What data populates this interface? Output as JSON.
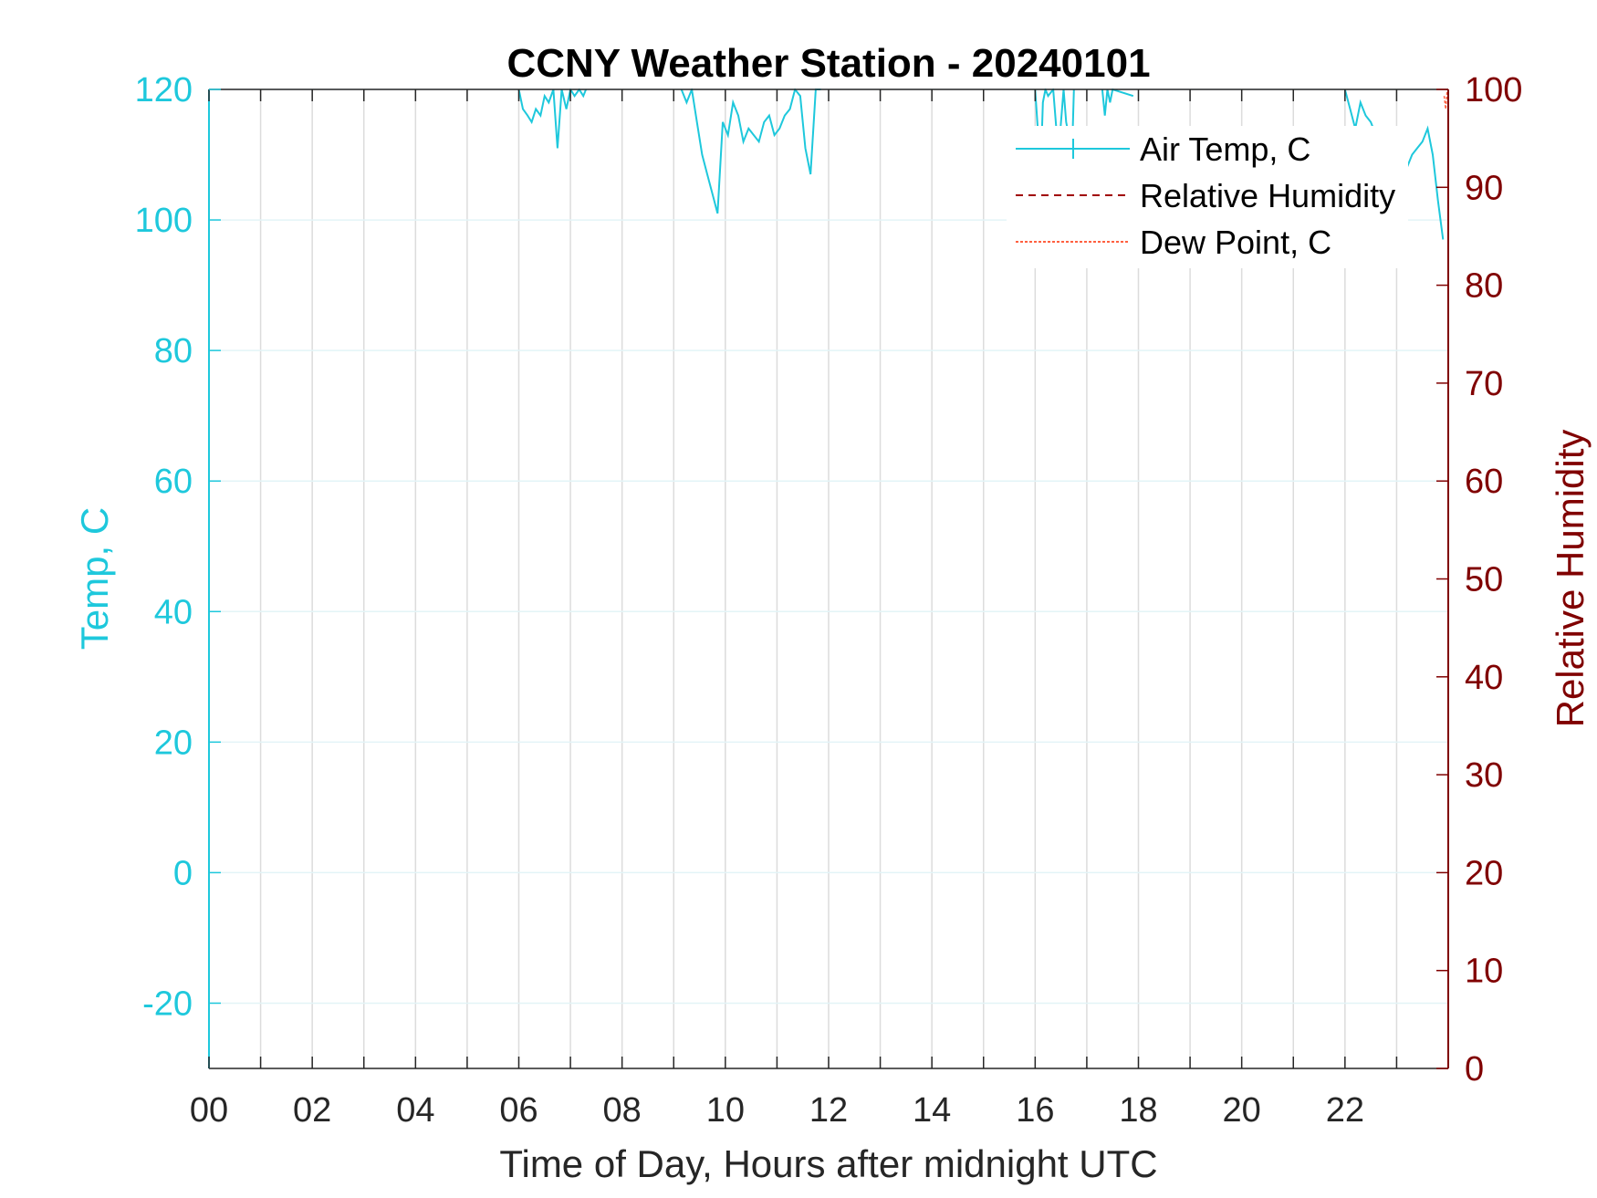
{
  "chart_data": {
    "type": "line",
    "title": "CCNY Weather Station - 20240101",
    "xlabel": "Time of Day, Hours after midnight UTC",
    "ylabel_left": "Temp, C",
    "ylabel_right": "Relative Humidity",
    "xlim": [
      0,
      24
    ],
    "ylim_left": [
      -30,
      120
    ],
    "ylim_right": [
      0,
      100
    ],
    "x_ticks": [
      0,
      2,
      4,
      6,
      8,
      10,
      12,
      14,
      16,
      18,
      20,
      22
    ],
    "x_tick_labels": [
      "00",
      "02",
      "04",
      "06",
      "08",
      "10",
      "12",
      "14",
      "16",
      "18",
      "20",
      "22"
    ],
    "y_left_ticks": [
      -20,
      0,
      20,
      40,
      60,
      80,
      100,
      120
    ],
    "y_left_tick_labels": [
      "-20",
      "0",
      "20",
      "40",
      "60",
      "80",
      "100",
      "120"
    ],
    "y_right_ticks": [
      0,
      10,
      20,
      30,
      40,
      50,
      60,
      70,
      80,
      90,
      100
    ],
    "y_right_tick_labels": [
      "0",
      "10",
      "20",
      "30",
      "40",
      "50",
      "60",
      "70",
      "80",
      "90",
      "100"
    ],
    "grid": true,
    "legend_position": "top-right",
    "colors": {
      "left_axis": "#1ec8dc",
      "right_axis": "#800000",
      "air_temp": "#1ec8dc",
      "humidity": "#a00000",
      "dew_point": "#ff6040",
      "grid": "#dcdcdc",
      "frame": "#262626"
    },
    "series": [
      {
        "name": "Air Temp, C",
        "axis": "left",
        "x": [
          6.0,
          6.08,
          6.17,
          6.25,
          6.33,
          6.42,
          6.5,
          6.58,
          6.67,
          6.75,
          6.83,
          6.92,
          7.0,
          7.08,
          7.17,
          7.25,
          7.3,
          9.15,
          9.25,
          9.35,
          9.45,
          9.55,
          9.65,
          9.75,
          9.85,
          9.95,
          10.05,
          10.15,
          10.25,
          10.35,
          10.45,
          10.55,
          10.65,
          10.75,
          10.85,
          10.95,
          11.05,
          11.15,
          11.25,
          11.35,
          11.45,
          11.55,
          11.65,
          11.75,
          11.85,
          13.9,
          16.0,
          16.05,
          16.1,
          16.15,
          16.2,
          16.25,
          16.35,
          16.45,
          16.55,
          16.6,
          16.65,
          16.7,
          16.75,
          17.3,
          17.35,
          17.4,
          17.45,
          17.5,
          17.9,
          22.0,
          22.1,
          22.2,
          22.3,
          22.4,
          22.5,
          22.6,
          22.7,
          22.8,
          22.9,
          23.0,
          23.1,
          23.2,
          23.3,
          23.4,
          23.5,
          23.6,
          23.7,
          23.8,
          23.9
        ],
        "y": [
          120,
          117,
          116,
          115,
          117,
          116,
          119,
          118,
          120,
          111,
          120,
          117,
          120,
          119,
          120,
          119,
          120,
          120,
          118,
          120,
          115,
          110,
          107,
          104,
          101,
          115,
          113,
          118,
          116,
          112,
          114,
          113,
          112,
          115,
          116,
          113,
          114,
          116,
          117,
          120,
          119,
          111,
          107,
          120,
          120,
          119,
          120,
          114,
          106,
          118,
          120,
          119,
          120,
          110,
          120,
          115,
          113,
          106,
          120,
          120,
          116,
          120,
          118,
          120,
          119,
          120,
          117,
          114,
          118,
          116,
          115,
          113,
          110,
          105,
          106,
          104,
          107,
          108,
          110,
          111,
          112,
          114,
          110,
          103,
          97
        ]
      },
      {
        "name": "Relative Humidity",
        "axis": "right",
        "x": [],
        "y": []
      },
      {
        "name": "Dew Point, C",
        "axis": "left",
        "x": [
          23.92,
          23.95,
          23.98
        ],
        "y": [
          119,
          117,
          120
        ]
      }
    ]
  }
}
